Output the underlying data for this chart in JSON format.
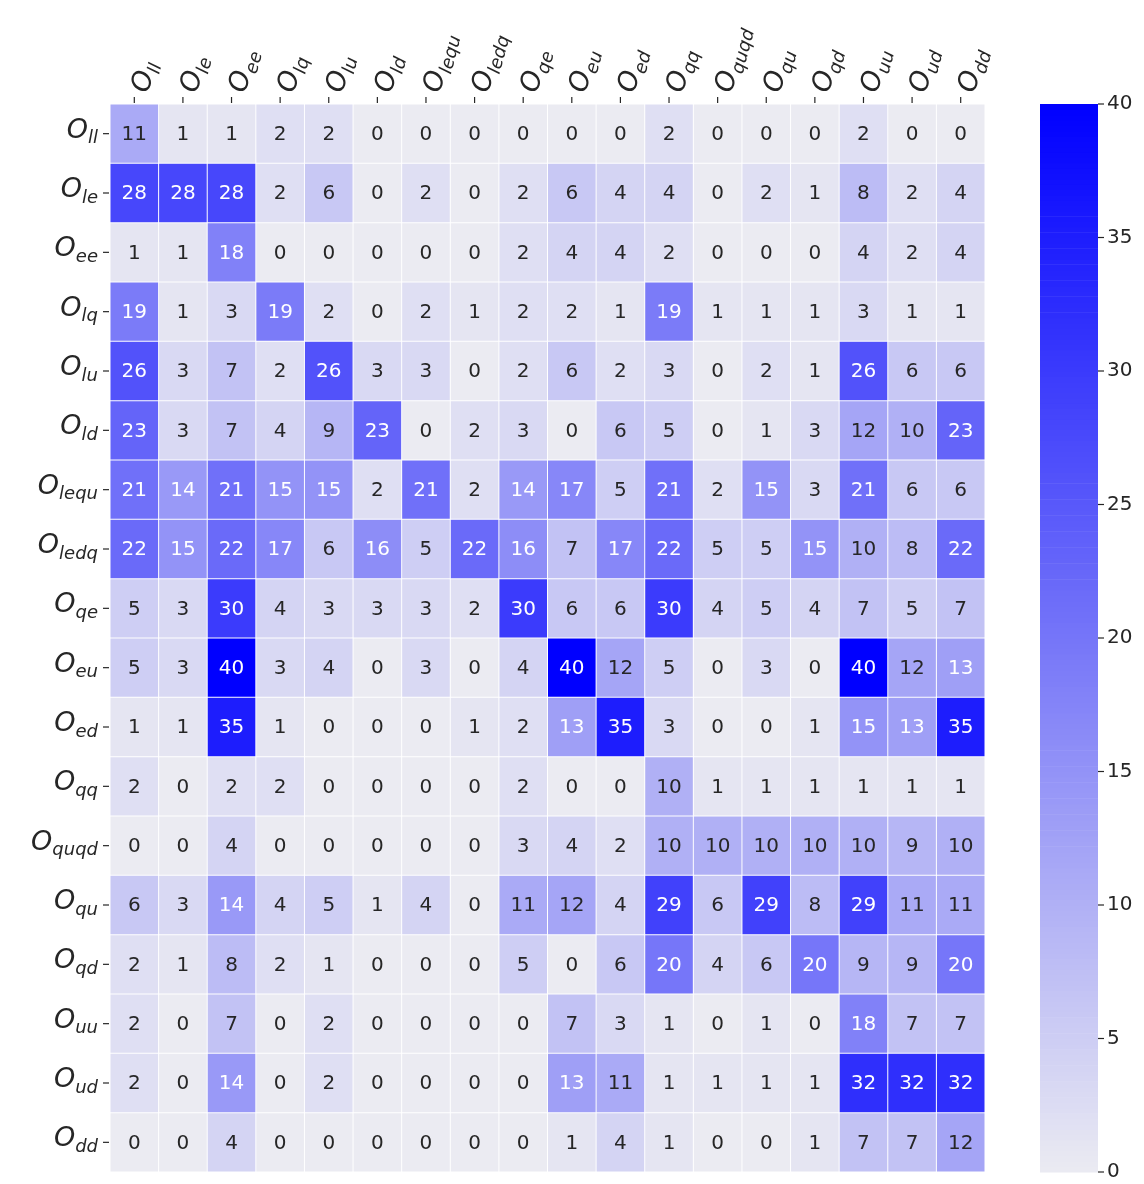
{
  "chart_data": {
    "type": "heatmap",
    "categories": [
      "O$_{ll}$",
      "O$_{le}$",
      "O$_{ee}$",
      "O$_{lq}$",
      "O$_{lu}$",
      "O$_{ld}$",
      "O$_{lequ}$",
      "O$_{ledq}$",
      "O$_{qe}$",
      "O$_{eu}$",
      "O$_{ed}$",
      "O$_{qq}$",
      "O$_{quqd}$",
      "O$_{qu}$",
      "O$_{qd}$",
      "O$_{uu}$",
      "O$_{ud}$",
      "O$_{dd}$"
    ],
    "y_categories": [
      "O$_{ll}$",
      "O$_{le}$",
      "O$_{ee}$",
      "O$_{lq}$",
      "O$_{lu}$",
      "O$_{ld}$",
      "O$_{lequ}$",
      "O$_{ledq}$",
      "O$_{qe}$",
      "O$_{eu}$",
      "O$_{ed}$",
      "O$_{qq}$",
      "O$_{quqd}$",
      "O$_{qu}$",
      "O$_{qd}$",
      "O$_{uu}$",
      "O$_{ud}$",
      "O$_{dd}$"
    ],
    "cells": [
      [
        11,
        1,
        1,
        2,
        2,
        0,
        0,
        0,
        0,
        0,
        0,
        2,
        0,
        0,
        0,
        2,
        0,
        0
      ],
      [
        28,
        28,
        28,
        2,
        6,
        0,
        2,
        0,
        2,
        6,
        4,
        4,
        0,
        2,
        1,
        8,
        2,
        4
      ],
      [
        1,
        1,
        18,
        0,
        0,
        0,
        0,
        0,
        2,
        4,
        4,
        2,
        0,
        0,
        0,
        4,
        2,
        4
      ],
      [
        19,
        1,
        3,
        19,
        2,
        0,
        2,
        1,
        2,
        2,
        1,
        19,
        1,
        1,
        1,
        3,
        1,
        1
      ],
      [
        26,
        3,
        7,
        2,
        26,
        3,
        3,
        0,
        2,
        6,
        2,
        3,
        0,
        2,
        1,
        26,
        6,
        6
      ],
      [
        23,
        3,
        7,
        4,
        9,
        23,
        0,
        2,
        3,
        0,
        6,
        5,
        0,
        1,
        3,
        12,
        10,
        23
      ],
      [
        21,
        14,
        21,
        15,
        15,
        2,
        21,
        2,
        14,
        17,
        5,
        21,
        2,
        15,
        3,
        21,
        6,
        6
      ],
      [
        22,
        15,
        22,
        17,
        6,
        16,
        5,
        22,
        16,
        7,
        17,
        22,
        5,
        5,
        15,
        10,
        8,
        22
      ],
      [
        5,
        3,
        30,
        4,
        3,
        3,
        3,
        2,
        30,
        6,
        6,
        30,
        4,
        5,
        4,
        7,
        5,
        7
      ],
      [
        5,
        3,
        40,
        3,
        4,
        0,
        3,
        0,
        4,
        40,
        12,
        5,
        0,
        3,
        0,
        40,
        12,
        13
      ],
      [
        1,
        1,
        35,
        1,
        0,
        0,
        0,
        1,
        2,
        13,
        35,
        3,
        0,
        0,
        1,
        15,
        13,
        35
      ],
      [
        2,
        0,
        2,
        2,
        0,
        0,
        0,
        0,
        2,
        0,
        0,
        10,
        1,
        1,
        1,
        1,
        1,
        1
      ],
      [
        0,
        0,
        4,
        0,
        0,
        0,
        0,
        0,
        3,
        4,
        2,
        10,
        10,
        10,
        10,
        10,
        9,
        10
      ],
      [
        6,
        3,
        14,
        4,
        5,
        1,
        4,
        0,
        11,
        12,
        4,
        29,
        6,
        29,
        8,
        29,
        11,
        11
      ],
      [
        2,
        1,
        8,
        2,
        1,
        0,
        0,
        0,
        5,
        0,
        6,
        20,
        4,
        6,
        20,
        9,
        9,
        20
      ],
      [
        2,
        0,
        7,
        0,
        2,
        0,
        0,
        0,
        0,
        7,
        3,
        1,
        0,
        1,
        0,
        18,
        7,
        7
      ],
      [
        2,
        0,
        14,
        0,
        2,
        0,
        0,
        0,
        0,
        13,
        11,
        1,
        1,
        1,
        1,
        32,
        32,
        32
      ],
      [
        0,
        0,
        4,
        0,
        0,
        0,
        0,
        0,
        0,
        1,
        4,
        1,
        0,
        0,
        1,
        7,
        7,
        12
      ]
    ],
    "clim": [
      0,
      40
    ],
    "cticks": [
      0,
      5,
      10,
      15,
      20,
      25,
      30,
      35,
      40
    ],
    "data_labels": true
  }
}
